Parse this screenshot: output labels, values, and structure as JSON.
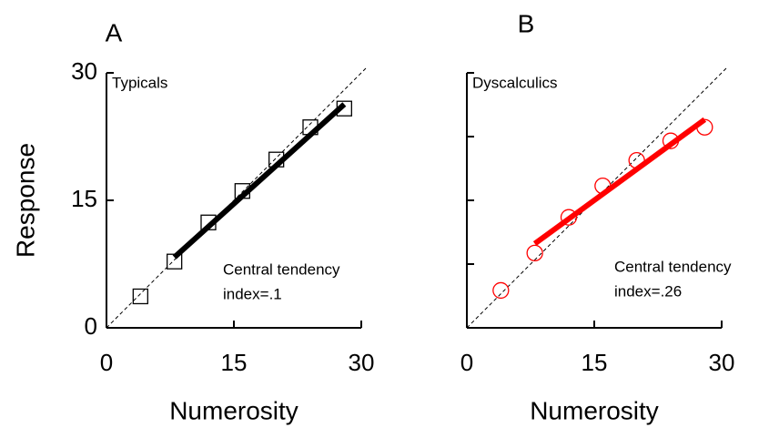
{
  "chart_data": [
    {
      "type": "scatter",
      "panel_label": "A",
      "title": "Typicals",
      "xlabel": "Numerosity",
      "ylabel": "Response",
      "xlim": [
        0,
        30
      ],
      "ylim": [
        0,
        30
      ],
      "xticks": [
        0,
        15,
        30
      ],
      "yticks": [
        0,
        15,
        30
      ],
      "ytick_labels": true,
      "identity_line": true,
      "annotation": [
        "Central tendency",
        "index=.1"
      ],
      "series": [
        {
          "type": "scatter",
          "marker": "square",
          "color": "#000000",
          "x": [
            4,
            8,
            12,
            16,
            20,
            24,
            28
          ],
          "values": [
            3.7,
            7.8,
            12.4,
            16.1,
            19.8,
            23.6,
            25.8
          ]
        },
        {
          "type": "line",
          "color": "#000000",
          "x": [
            8,
            28
          ],
          "values": [
            8.3,
            26.3
          ]
        }
      ]
    },
    {
      "type": "scatter",
      "panel_label": "B",
      "title": "Dyscalculics",
      "xlabel": "Numerosity",
      "xlim": [
        0,
        30
      ],
      "ylim": [
        0,
        30
      ],
      "xticks": [
        0,
        15,
        30
      ],
      "yticks": [
        0,
        7.5,
        15,
        22.5,
        30
      ],
      "ytick_labels": false,
      "identity_line": true,
      "annotation": [
        "Central tendency",
        "index=.26"
      ],
      "series": [
        {
          "type": "scatter",
          "marker": "circle",
          "color": "#ff0000",
          "x": [
            4,
            8,
            12,
            16,
            20,
            24,
            28
          ],
          "values": [
            4.4,
            8.8,
            13.0,
            16.7,
            19.7,
            22.0,
            23.6
          ]
        },
        {
          "type": "line",
          "color": "#ff0000",
          "x": [
            8,
            28
          ],
          "values": [
            9.9,
            24.5
          ]
        }
      ]
    }
  ]
}
